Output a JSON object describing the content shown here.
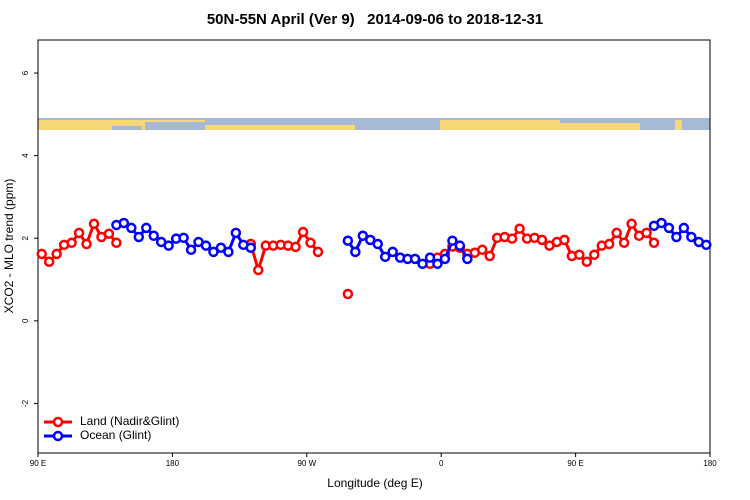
{
  "chart_data": {
    "type": "line",
    "title": "50N-55N April (Ver 9)   2014-09-06 to 2018-12-31",
    "x_label": "Longitude (deg E)",
    "y_label": "XCO2 - MLO trend (ppm)",
    "xlim": [
      90,
      540
    ],
    "xticks": [
      {
        "value": 90,
        "label": "90 E"
      },
      180,
      {
        "value": 270,
        "label": "90 W"
      },
      {
        "value": 360,
        "label": "0"
      },
      {
        "value": 450,
        "label": "90 E"
      },
      {
        "value": 540,
        "label": "180"
      }
    ],
    "ylim": [
      -3.2,
      6.8
    ],
    "yticks": [
      -2,
      0,
      2,
      4,
      6
    ],
    "legend": "bottom-left",
    "x": [
      92.5,
      97.5,
      102.5,
      107.5,
      112.5,
      117.5,
      122.5,
      127.5,
      132.5,
      137.5,
      142.5,
      147.5,
      152.5,
      157.5,
      162.5,
      167.5,
      172.5,
      177.5,
      182.5,
      187.5,
      192.5,
      197.5,
      202.5,
      207.5,
      212.5,
      217.5,
      222.5,
      227.5,
      232.5,
      237.5,
      242.5,
      247.5,
      252.5,
      257.5,
      262.5,
      267.5,
      272.5,
      277.5,
      282.5,
      287.5,
      292.5,
      297.5,
      302.5,
      307.5,
      312.5,
      317.5,
      322.5,
      327.5,
      332.5,
      337.5,
      342.5,
      347.5,
      352.5,
      357.5,
      362.5,
      367.5,
      372.5,
      377.5,
      382.5,
      387.5,
      392.5,
      397.5,
      402.5,
      407.5,
      412.5,
      417.5,
      422.5,
      427.5,
      432.5,
      437.5,
      442.5,
      447.5,
      452.5,
      457.5,
      462.5,
      467.5,
      472.5,
      477.5,
      482.5,
      487.5,
      492.5,
      497.5,
      502.5,
      507.5,
      512.5,
      517.5,
      522.5,
      527.5,
      532.5,
      537.5
    ],
    "series": [
      {
        "name": "Land (Nadir&Glint)",
        "color": "#ff0000",
        "values": [
          1.62,
          1.43,
          1.62,
          1.84,
          1.89,
          2.13,
          1.86,
          2.35,
          2.03,
          2.11,
          1.89,
          null,
          null,
          null,
          null,
          null,
          null,
          null,
          null,
          null,
          null,
          null,
          null,
          null,
          null,
          null,
          null,
          null,
          1.86,
          1.23,
          1.82,
          1.82,
          1.84,
          1.82,
          1.79,
          2.15,
          1.89,
          1.67,
          null,
          null,
          null,
          0.65,
          null,
          null,
          null,
          null,
          null,
          null,
          null,
          null,
          null,
          null,
          1.38,
          1.53,
          1.62,
          1.8,
          1.77,
          1.62,
          1.65,
          1.72,
          1.57,
          2.01,
          2.03,
          1.99,
          2.23,
          1.99,
          2.01,
          1.96,
          1.82,
          1.91,
          1.96,
          1.57,
          1.6,
          1.43,
          1.6,
          1.82,
          1.86,
          2.13,
          1.89,
          2.35,
          2.06,
          2.13,
          1.89,
          null,
          null,
          null,
          null,
          null,
          null,
          null
        ]
      },
      {
        "name": "Ocean (Glint)",
        "color": "#0000ff",
        "values": [
          null,
          null,
          null,
          null,
          null,
          null,
          null,
          null,
          null,
          null,
          2.32,
          2.37,
          2.25,
          2.03,
          2.25,
          2.06,
          1.91,
          1.82,
          1.99,
          2.01,
          1.72,
          1.91,
          1.82,
          1.67,
          1.77,
          1.67,
          2.13,
          1.84,
          1.77,
          null,
          null,
          null,
          null,
          null,
          null,
          null,
          null,
          null,
          null,
          null,
          null,
          1.94,
          1.67,
          2.06,
          1.96,
          1.86,
          1.55,
          1.67,
          1.53,
          1.5,
          1.5,
          1.38,
          1.53,
          1.38,
          1.5,
          1.94,
          1.82,
          1.5,
          null,
          null,
          null,
          null,
          null,
          null,
          null,
          null,
          null,
          null,
          null,
          null,
          null,
          null,
          null,
          null,
          null,
          null,
          null,
          null,
          null,
          null,
          null,
          null,
          2.3,
          2.37,
          2.25,
          2.03,
          2.25,
          2.03,
          1.91,
          1.84
        ]
      }
    ]
  }
}
